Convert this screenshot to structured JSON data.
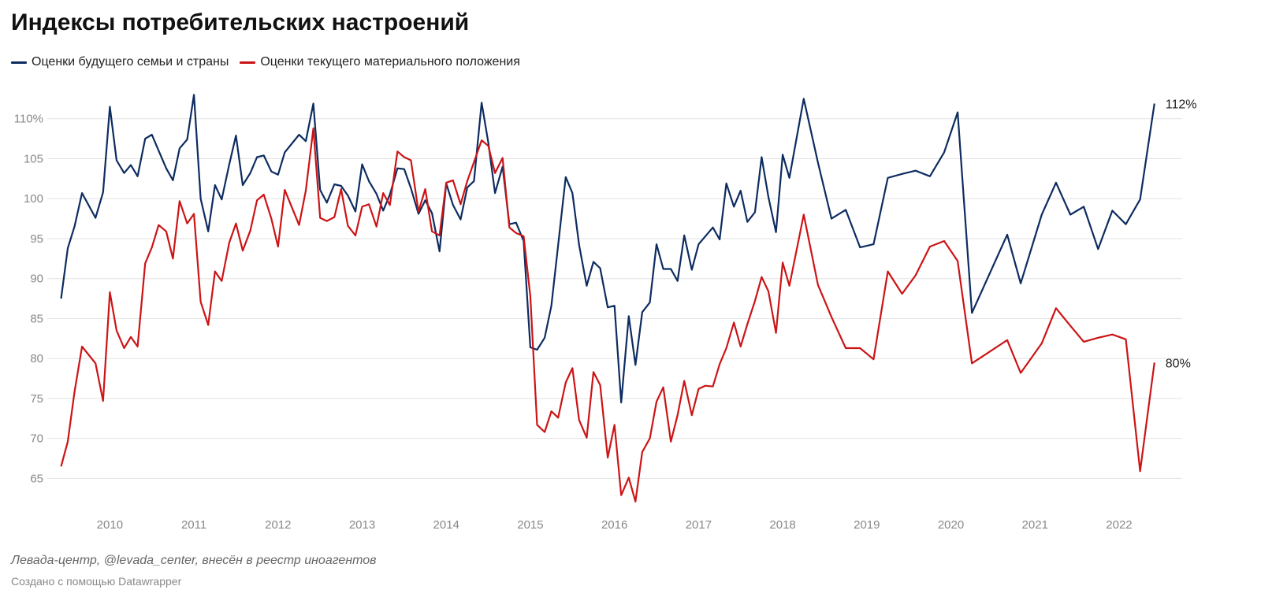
{
  "title": "Индексы потребительских настроений",
  "source": "Левада-центр, @levada_center, внесён в реестр иноагентов",
  "credit": "Создано с помощью Datawrapper",
  "chart_data": {
    "type": "line",
    "title": "Индексы потребительских настроений",
    "ylim": [
      61,
      115
    ],
    "y_ticks": [
      65,
      70,
      75,
      80,
      85,
      90,
      95,
      100,
      105,
      110
    ],
    "y_tick_labels": [
      "65",
      "70",
      "75",
      "80",
      "85",
      "90",
      "95",
      "100",
      "105",
      "110%"
    ],
    "x_ticks": [
      2010,
      2011,
      2012,
      2013,
      2014,
      2015,
      2016,
      2017,
      2018,
      2019,
      2020,
      2021,
      2022
    ],
    "x_tick_labels": [
      "2010",
      "2011",
      "2012",
      "2013",
      "2014",
      "2015",
      "2016",
      "2017",
      "2018",
      "2019",
      "2020",
      "2021",
      "2022"
    ],
    "xlim": [
      2009.35,
      2022.75
    ],
    "grid": true,
    "legend": "top-left",
    "series": [
      {
        "name": "Оценки будущего семьи и страны",
        "color": "#0d2c60",
        "end_label": "112%",
        "points": [
          [
            2009.42,
            87.5
          ],
          [
            2009.5,
            93.8
          ],
          [
            2009.58,
            96.5
          ],
          [
            2009.67,
            100.7
          ],
          [
            2009.83,
            97.6
          ],
          [
            2009.92,
            100.8
          ],
          [
            2010.0,
            111.5
          ],
          [
            2010.08,
            104.8
          ],
          [
            2010.17,
            103.2
          ],
          [
            2010.25,
            104.2
          ],
          [
            2010.33,
            102.8
          ],
          [
            2010.42,
            107.5
          ],
          [
            2010.5,
            108.0
          ],
          [
            2010.58,
            106.0
          ],
          [
            2010.67,
            103.8
          ],
          [
            2010.75,
            102.3
          ],
          [
            2010.83,
            106.3
          ],
          [
            2010.92,
            107.4
          ],
          [
            2011.0,
            113.0
          ],
          [
            2011.08,
            100.0
          ],
          [
            2011.17,
            95.9
          ],
          [
            2011.25,
            101.7
          ],
          [
            2011.33,
            99.9
          ],
          [
            2011.42,
            104.3
          ],
          [
            2011.5,
            107.9
          ],
          [
            2011.58,
            101.7
          ],
          [
            2011.67,
            103.2
          ],
          [
            2011.75,
            105.2
          ],
          [
            2011.83,
            105.4
          ],
          [
            2011.92,
            103.4
          ],
          [
            2012.0,
            103.0
          ],
          [
            2012.08,
            105.8
          ],
          [
            2012.25,
            108.0
          ],
          [
            2012.33,
            107.2
          ],
          [
            2012.42,
            111.9
          ],
          [
            2012.5,
            101.1
          ],
          [
            2012.58,
            99.5
          ],
          [
            2012.67,
            101.8
          ],
          [
            2012.75,
            101.6
          ],
          [
            2012.83,
            100.4
          ],
          [
            2012.92,
            98.4
          ],
          [
            2013.0,
            104.3
          ],
          [
            2013.08,
            102.2
          ],
          [
            2013.17,
            100.6
          ],
          [
            2013.25,
            98.5
          ],
          [
            2013.33,
            100.5
          ],
          [
            2013.42,
            103.8
          ],
          [
            2013.5,
            103.7
          ],
          [
            2013.58,
            101.3
          ],
          [
            2013.67,
            98.1
          ],
          [
            2013.75,
            99.8
          ],
          [
            2013.83,
            98.2
          ],
          [
            2013.92,
            93.4
          ],
          [
            2014.0,
            101.9
          ],
          [
            2014.08,
            99.2
          ],
          [
            2014.17,
            97.4
          ],
          [
            2014.25,
            101.4
          ],
          [
            2014.33,
            102.2
          ],
          [
            2014.42,
            112.0
          ],
          [
            2014.5,
            107.0
          ],
          [
            2014.58,
            100.7
          ],
          [
            2014.67,
            104.0
          ],
          [
            2014.75,
            96.8
          ],
          [
            2014.83,
            97.0
          ],
          [
            2014.92,
            94.7
          ],
          [
            2015.0,
            81.4
          ],
          [
            2015.08,
            81.1
          ],
          [
            2015.17,
            82.6
          ],
          [
            2015.25,
            86.6
          ],
          [
            2015.33,
            94.2
          ],
          [
            2015.42,
            102.7
          ],
          [
            2015.5,
            100.7
          ],
          [
            2015.58,
            94.2
          ],
          [
            2015.67,
            89.1
          ],
          [
            2015.75,
            92.1
          ],
          [
            2015.83,
            91.3
          ],
          [
            2015.92,
            86.4
          ],
          [
            2016.0,
            86.6
          ],
          [
            2016.08,
            74.5
          ],
          [
            2016.17,
            85.3
          ],
          [
            2016.25,
            79.2
          ],
          [
            2016.33,
            85.8
          ],
          [
            2016.42,
            87.0
          ],
          [
            2016.5,
            94.3
          ],
          [
            2016.58,
            91.2
          ],
          [
            2016.67,
            91.2
          ],
          [
            2016.75,
            89.7
          ],
          [
            2016.83,
            95.4
          ],
          [
            2016.92,
            91.1
          ],
          [
            2017.0,
            94.3
          ],
          [
            2017.17,
            96.4
          ],
          [
            2017.25,
            94.9
          ],
          [
            2017.33,
            101.9
          ],
          [
            2017.42,
            99.0
          ],
          [
            2017.5,
            101.0
          ],
          [
            2017.58,
            97.1
          ],
          [
            2017.67,
            98.3
          ],
          [
            2017.75,
            105.2
          ],
          [
            2017.83,
            100.2
          ],
          [
            2017.92,
            95.8
          ],
          [
            2018.0,
            105.5
          ],
          [
            2018.08,
            102.6
          ],
          [
            2018.25,
            112.5
          ],
          [
            2018.42,
            104.5
          ],
          [
            2018.58,
            97.5
          ],
          [
            2018.75,
            98.6
          ],
          [
            2018.92,
            93.9
          ],
          [
            2019.08,
            94.3
          ],
          [
            2019.25,
            102.6
          ],
          [
            2019.42,
            103.1
          ],
          [
            2019.58,
            103.5
          ],
          [
            2019.75,
            102.8
          ],
          [
            2019.92,
            105.8
          ],
          [
            2020.08,
            110.8
          ],
          [
            2020.25,
            85.7
          ],
          [
            2020.67,
            95.5
          ],
          [
            2020.83,
            89.4
          ],
          [
            2021.08,
            98.0
          ],
          [
            2021.25,
            102.0
          ],
          [
            2021.42,
            98.0
          ],
          [
            2021.58,
            99.0
          ],
          [
            2021.75,
            93.7
          ],
          [
            2021.92,
            98.5
          ],
          [
            2022.08,
            96.8
          ],
          [
            2022.25,
            99.9
          ],
          [
            2022.42,
            111.9
          ]
        ]
      },
      {
        "name": "Оценки текущего материального положения",
        "color": "#cc1416",
        "end_label": "80%",
        "points": [
          [
            2009.42,
            66.5
          ],
          [
            2009.5,
            69.6
          ],
          [
            2009.58,
            75.8
          ],
          [
            2009.67,
            81.5
          ],
          [
            2009.83,
            79.4
          ],
          [
            2009.92,
            74.7
          ],
          [
            2010.0,
            88.3
          ],
          [
            2010.08,
            83.5
          ],
          [
            2010.17,
            81.3
          ],
          [
            2010.25,
            82.7
          ],
          [
            2010.33,
            81.5
          ],
          [
            2010.42,
            91.9
          ],
          [
            2010.5,
            93.9
          ],
          [
            2010.58,
            96.7
          ],
          [
            2010.67,
            95.9
          ],
          [
            2010.75,
            92.5
          ],
          [
            2010.83,
            99.7
          ],
          [
            2010.92,
            96.9
          ],
          [
            2011.0,
            98.1
          ],
          [
            2011.08,
            87.1
          ],
          [
            2011.17,
            84.2
          ],
          [
            2011.25,
            90.9
          ],
          [
            2011.33,
            89.7
          ],
          [
            2011.42,
            94.5
          ],
          [
            2011.5,
            96.9
          ],
          [
            2011.58,
            93.5
          ],
          [
            2011.67,
            96.0
          ],
          [
            2011.75,
            99.8
          ],
          [
            2011.83,
            100.5
          ],
          [
            2011.92,
            97.5
          ],
          [
            2012.0,
            94.0
          ],
          [
            2012.08,
            101.1
          ],
          [
            2012.25,
            96.7
          ],
          [
            2012.33,
            101.0
          ],
          [
            2012.42,
            108.8
          ],
          [
            2012.5,
            97.6
          ],
          [
            2012.58,
            97.2
          ],
          [
            2012.67,
            97.7
          ],
          [
            2012.75,
            101.2
          ],
          [
            2012.83,
            96.6
          ],
          [
            2012.92,
            95.4
          ],
          [
            2013.0,
            99.0
          ],
          [
            2013.08,
            99.3
          ],
          [
            2013.17,
            96.5
          ],
          [
            2013.25,
            100.7
          ],
          [
            2013.33,
            99.2
          ],
          [
            2013.42,
            105.9
          ],
          [
            2013.5,
            105.2
          ],
          [
            2013.58,
            104.8
          ],
          [
            2013.67,
            98.4
          ],
          [
            2013.75,
            101.2
          ],
          [
            2013.83,
            95.9
          ],
          [
            2013.92,
            95.4
          ],
          [
            2014.0,
            102.0
          ],
          [
            2014.08,
            102.3
          ],
          [
            2014.17,
            99.3
          ],
          [
            2014.25,
            102.2
          ],
          [
            2014.42,
            107.3
          ],
          [
            2014.5,
            106.6
          ],
          [
            2014.58,
            103.2
          ],
          [
            2014.67,
            105.1
          ],
          [
            2014.75,
            96.4
          ],
          [
            2014.83,
            95.7
          ],
          [
            2014.92,
            95.3
          ],
          [
            2015.0,
            87.8
          ],
          [
            2015.08,
            71.7
          ],
          [
            2015.17,
            70.8
          ],
          [
            2015.25,
            73.4
          ],
          [
            2015.33,
            72.6
          ],
          [
            2015.42,
            77.0
          ],
          [
            2015.5,
            78.8
          ],
          [
            2015.58,
            72.3
          ],
          [
            2015.67,
            70.1
          ],
          [
            2015.75,
            78.3
          ],
          [
            2015.83,
            76.7
          ],
          [
            2015.92,
            67.6
          ],
          [
            2016.0,
            71.7
          ],
          [
            2016.08,
            62.9
          ],
          [
            2016.17,
            65.1
          ],
          [
            2016.25,
            62.1
          ],
          [
            2016.33,
            68.3
          ],
          [
            2016.42,
            70.0
          ],
          [
            2016.5,
            74.6
          ],
          [
            2016.58,
            76.4
          ],
          [
            2016.67,
            69.6
          ],
          [
            2016.75,
            72.9
          ],
          [
            2016.83,
            77.2
          ],
          [
            2016.92,
            72.9
          ],
          [
            2017.0,
            76.2
          ],
          [
            2017.08,
            76.6
          ],
          [
            2017.17,
            76.5
          ],
          [
            2017.25,
            79.3
          ],
          [
            2017.33,
            81.3
          ],
          [
            2017.42,
            84.5
          ],
          [
            2017.5,
            81.5
          ],
          [
            2017.58,
            84.3
          ],
          [
            2017.67,
            87.2
          ],
          [
            2017.75,
            90.2
          ],
          [
            2017.83,
            88.4
          ],
          [
            2017.92,
            83.2
          ],
          [
            2018.0,
            92.0
          ],
          [
            2018.08,
            89.1
          ],
          [
            2018.25,
            98.0
          ],
          [
            2018.42,
            89.2
          ],
          [
            2018.58,
            85.2
          ],
          [
            2018.75,
            81.3
          ],
          [
            2018.92,
            81.3
          ],
          [
            2019.08,
            79.9
          ],
          [
            2019.25,
            90.9
          ],
          [
            2019.42,
            88.1
          ],
          [
            2019.58,
            90.4
          ],
          [
            2019.75,
            94.0
          ],
          [
            2019.92,
            94.7
          ],
          [
            2020.08,
            92.2
          ],
          [
            2020.25,
            79.4
          ],
          [
            2020.67,
            82.3
          ],
          [
            2020.83,
            78.2
          ],
          [
            2021.08,
            81.9
          ],
          [
            2021.25,
            86.3
          ],
          [
            2021.42,
            84.1
          ],
          [
            2021.58,
            82.1
          ],
          [
            2021.75,
            82.6
          ],
          [
            2021.92,
            83.0
          ],
          [
            2022.08,
            82.4
          ],
          [
            2022.25,
            65.9
          ],
          [
            2022.42,
            79.5
          ]
        ]
      }
    ]
  }
}
